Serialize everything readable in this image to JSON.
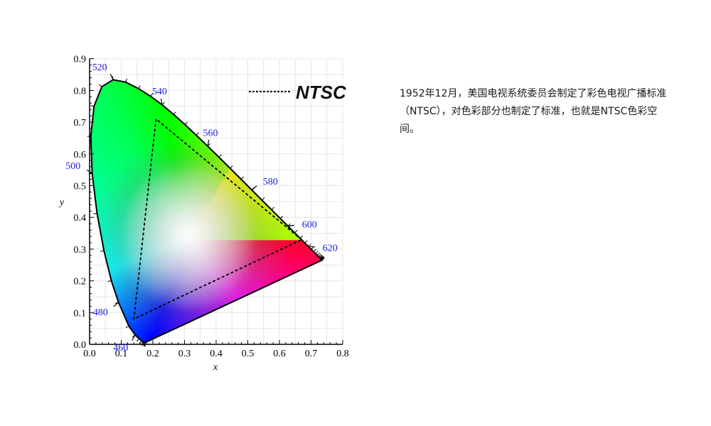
{
  "diagram": {
    "x_axis_label": "x",
    "y_axis_label": "y",
    "x_ticks": [
      "0.0",
      "0.1",
      "0.2",
      "0.3",
      "0.4",
      "0.5",
      "0.6",
      "0.7",
      "0.8"
    ],
    "y_ticks": [
      "0.0",
      "0.1",
      "0.2",
      "0.3",
      "0.4",
      "0.5",
      "0.6",
      "0.7",
      "0.8",
      "0.9"
    ],
    "wavelength_labels": [
      {
        "text": "460",
        "x": 0.144,
        "y": 0.0297
      },
      {
        "text": "480",
        "x": 0.0913,
        "y": 0.1327
      },
      {
        "text": "500",
        "x": 0.0082,
        "y": 0.5384
      },
      {
        "text": "520",
        "x": 0.0743,
        "y": 0.8338
      },
      {
        "text": "540",
        "x": 0.2296,
        "y": 0.7543
      },
      {
        "text": "560",
        "x": 0.3731,
        "y": 0.6245
      },
      {
        "text": "580",
        "x": 0.5125,
        "y": 0.4866
      },
      {
        "text": "600",
        "x": 0.627,
        "y": 0.3725
      },
      {
        "text": "620",
        "x": 0.6915,
        "y": 0.3083
      }
    ],
    "ntsc_gamut": {
      "red": {
        "x": 0.67,
        "y": 0.33
      },
      "green": {
        "x": 0.21,
        "y": 0.71
      },
      "blue": {
        "x": 0.14,
        "y": 0.08
      }
    },
    "legend_label": "NTSC",
    "label_color": "#1a1adc",
    "gamut_line_color": "#000000"
  },
  "description": "1952年12月，美国电视系统委员会制定了彩色电视广播标准（NTSC），对色彩部分也制定了标准，也就是NTSC色彩空间。"
}
